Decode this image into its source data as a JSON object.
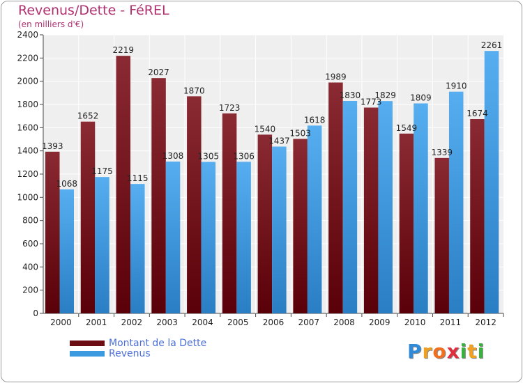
{
  "header": {
    "title": "Revenus/Dette - FéREL",
    "subtitle": "(en milliers d'€)"
  },
  "chart_data": {
    "type": "bar",
    "categories": [
      "2000",
      "2001",
      "2002",
      "2003",
      "2004",
      "2005",
      "2006",
      "2007",
      "2008",
      "2009",
      "2010",
      "2011",
      "2012"
    ],
    "series": [
      {
        "name": "Montant de la Dette",
        "color": "#7a1c24",
        "values": [
          1393,
          1652,
          2219,
          2027,
          1870,
          1723,
          1540,
          1503,
          1989,
          1773,
          1549,
          1339,
          1674
        ]
      },
      {
        "name": "Revenus",
        "color": "#3c9ae0",
        "values": [
          1068,
          1175,
          1115,
          1308,
          1305,
          1306,
          1437,
          1618,
          1830,
          1829,
          1809,
          1910,
          2261
        ]
      }
    ],
    "ylim": [
      0,
      2400
    ],
    "yticks": [
      0,
      200,
      400,
      600,
      800,
      1000,
      1200,
      1400,
      1600,
      1800,
      2000,
      2200,
      2400
    ],
    "grid": true,
    "legend_position": "bottom-left"
  },
  "legend": {
    "items": [
      {
        "label": "Montant de la Dette",
        "color": "#6a0e14"
      },
      {
        "label": "Revenus",
        "color": "#3c9ae0"
      }
    ]
  },
  "logo": {
    "letters": [
      "P",
      "r",
      "o",
      "x",
      "i",
      "t",
      "i"
    ],
    "colors": [
      "#2f8ad8",
      "#f0a020",
      "#f07020",
      "#e03040",
      "#3ab040",
      "#f0a020",
      "#3ab040"
    ]
  }
}
